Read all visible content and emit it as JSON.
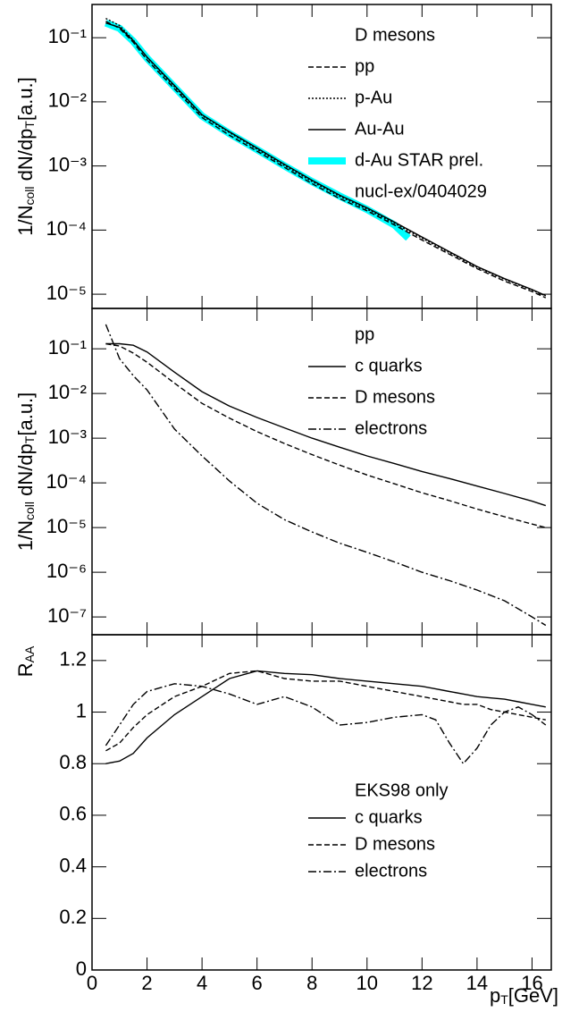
{
  "chart_data": [
    {
      "type": "line",
      "log_y": true,
      "xtick_labels": false,
      "xlim": [
        0,
        16.7
      ],
      "ylim": [
        6e-06,
        0.33
      ],
      "xticks": [
        0,
        2,
        4,
        6,
        8,
        10,
        12,
        14,
        16
      ],
      "yticks": [
        {
          "value": 1e-05,
          "label": "10⁻⁵"
        },
        {
          "value": 0.0001,
          "label": "10⁻⁴"
        },
        {
          "value": 0.001,
          "label": "10⁻³"
        },
        {
          "value": 0.01,
          "label": "10⁻²"
        },
        {
          "value": 0.1,
          "label": "10⁻¹"
        }
      ],
      "ylabel": [
        "1/N",
        "coll",
        " dN/dp",
        "T",
        "[a.u.]"
      ],
      "legend_title": "D mesons",
      "annotation": "nucl-ex/0404029",
      "x": [
        0.5,
        1,
        1.5,
        2,
        3,
        4,
        5,
        6,
        7,
        8,
        9,
        10,
        11,
        12,
        13,
        14,
        15,
        16,
        16.5
      ],
      "series": [
        {
          "name": "pp",
          "style": "dashed",
          "color": "#000000",
          "values": [
            0.18,
            0.14,
            0.085,
            0.045,
            0.016,
            0.0057,
            0.003,
            0.0017,
            0.00095,
            0.00053,
            0.00031,
            0.0002,
            0.00012,
            7e-05,
            4.2e-05,
            2.5e-05,
            1.6e-05,
            1.1e-05,
            8.8e-06
          ]
        },
        {
          "name": "p-Au",
          "style": "dotted",
          "color": "#000000",
          "values": [
            0.2,
            0.155,
            0.092,
            0.049,
            0.0172,
            0.0061,
            0.0033,
            0.00182,
            0.00101,
            0.00057,
            0.000335,
            0.000212,
            0.000127,
            7.45e-05,
            4.43e-05,
            2.62e-05,
            1.71e-05,
            1.16e-05,
            9.4e-06
          ]
        },
        {
          "name": "Au-Au",
          "style": "solid",
          "color": "#000000",
          "values": [
            0.17,
            0.145,
            0.09,
            0.05,
            0.018,
            0.0063,
            0.0034,
            0.0019,
            0.00106,
            0.0006,
            0.00035,
            0.000222,
            0.000133,
            7.8e-05,
            4.6e-05,
            2.7e-05,
            1.75e-05,
            1.18e-05,
            9.5e-06
          ]
        },
        {
          "name": "d-Au STAR prel.",
          "style": "band",
          "color": "#00ffff",
          "x": [
            0.5,
            1,
            1.5,
            2,
            3,
            4,
            5,
            6,
            7,
            8,
            9,
            10,
            11,
            11.5
          ],
          "values": [
            0.17,
            0.14,
            0.088,
            0.048,
            0.017,
            0.006,
            0.0032,
            0.0018,
            0.001,
            0.00057,
            0.00034,
            0.00021,
            0.00012,
            7.5e-05
          ]
        }
      ]
    },
    {
      "type": "line",
      "log_y": true,
      "xtick_labels": false,
      "xlim": [
        0,
        16.7
      ],
      "ylim": [
        4e-08,
        0.8
      ],
      "xticks": [
        0,
        2,
        4,
        6,
        8,
        10,
        12,
        14,
        16
      ],
      "yticks": [
        {
          "value": 1e-07,
          "label": "10⁻⁷"
        },
        {
          "value": 1e-06,
          "label": "10⁻⁶"
        },
        {
          "value": 1e-05,
          "label": "10⁻⁵"
        },
        {
          "value": 0.0001,
          "label": "10⁻⁴"
        },
        {
          "value": 0.001,
          "label": "10⁻³"
        },
        {
          "value": 0.01,
          "label": "10⁻²"
        },
        {
          "value": 0.1,
          "label": "10⁻¹"
        }
      ],
      "ylabel": [
        "1/N",
        "coll",
        " dN/dp",
        "T",
        "[a.u.]"
      ],
      "legend_title": "pp",
      "x": [
        0.5,
        1,
        1.5,
        2,
        3,
        4,
        5,
        6,
        7,
        8,
        9,
        10,
        11,
        12,
        13,
        14,
        15,
        16,
        16.5
      ],
      "series": [
        {
          "name": "c quarks",
          "style": "solid",
          "color": "#000000",
          "values": [
            0.13,
            0.13,
            0.12,
            0.085,
            0.03,
            0.011,
            0.0052,
            0.0029,
            0.0017,
            0.001,
            0.00063,
            0.0004,
            0.00027,
            0.00018,
            0.000125,
            8.5e-05,
            5.8e-05,
            3.9e-05,
            3.1e-05
          ]
        },
        {
          "name": "D mesons",
          "style": "dashed",
          "color": "#000000",
          "values": [
            0.13,
            0.115,
            0.08,
            0.05,
            0.017,
            0.006,
            0.0028,
            0.0014,
            0.00076,
            0.00043,
            0.00025,
            0.00015,
            9.5e-05,
            6e-05,
            4e-05,
            2.6e-05,
            1.75e-05,
            1.2e-05,
            1e-05
          ]
        },
        {
          "name": "electrons",
          "style": "dashdot",
          "color": "#000000",
          "values": [
            0.35,
            0.06,
            0.025,
            0.012,
            0.0016,
            0.0004,
            0.00011,
            3.5e-05,
            1.5e-05,
            8e-06,
            4.5e-06,
            2.8e-06,
            1.7e-06,
            1e-06,
            6.5e-07,
            4e-07,
            2.3e-07,
            1e-07,
            6.5e-08
          ]
        }
      ]
    },
    {
      "type": "line",
      "log_y": false,
      "xtick_labels": true,
      "xlim": [
        0,
        16.7
      ],
      "ylim": [
        0,
        1.3
      ],
      "xticks": [
        0,
        2,
        4,
        6,
        8,
        10,
        12,
        14,
        16
      ],
      "yticks": [
        0,
        0.2,
        0.4,
        0.6,
        0.8,
        1,
        1.2
      ],
      "ylabel": [
        "R",
        "AA"
      ],
      "xlabel": [
        "p",
        "T",
        "[GeV]"
      ],
      "legend_title": "EKS98 only",
      "x": [
        0.5,
        1,
        1.5,
        2,
        3,
        4,
        5,
        6,
        7,
        8,
        9,
        10,
        11,
        12,
        12.5,
        13,
        13.5,
        14,
        14.5,
        15,
        15.5,
        16,
        16.5
      ],
      "series": [
        {
          "name": "c quarks",
          "style": "solid",
          "color": "#000000",
          "values": [
            0.8,
            0.81,
            0.84,
            0.9,
            0.99,
            1.06,
            1.13,
            1.16,
            1.15,
            1.145,
            1.13,
            1.12,
            1.11,
            1.1,
            1.09,
            1.08,
            1.07,
            1.06,
            1.055,
            1.05,
            1.04,
            1.03,
            1.02
          ]
        },
        {
          "name": "D mesons",
          "style": "dashed",
          "color": "#000000",
          "values": [
            0.85,
            0.88,
            0.94,
            0.99,
            1.06,
            1.1,
            1.15,
            1.16,
            1.13,
            1.12,
            1.12,
            1.1,
            1.08,
            1.06,
            1.05,
            1.04,
            1.03,
            1.03,
            1.01,
            1.0,
            0.99,
            0.98,
            0.97
          ]
        },
        {
          "name": "electrons",
          "style": "dashdot",
          "color": "#000000",
          "values": [
            0.87,
            0.95,
            1.03,
            1.08,
            1.11,
            1.1,
            1.07,
            1.03,
            1.06,
            1.02,
            0.95,
            0.96,
            0.98,
            0.99,
            0.97,
            0.88,
            0.8,
            0.86,
            0.95,
            1.0,
            1.02,
            0.99,
            0.95
          ]
        }
      ]
    }
  ]
}
